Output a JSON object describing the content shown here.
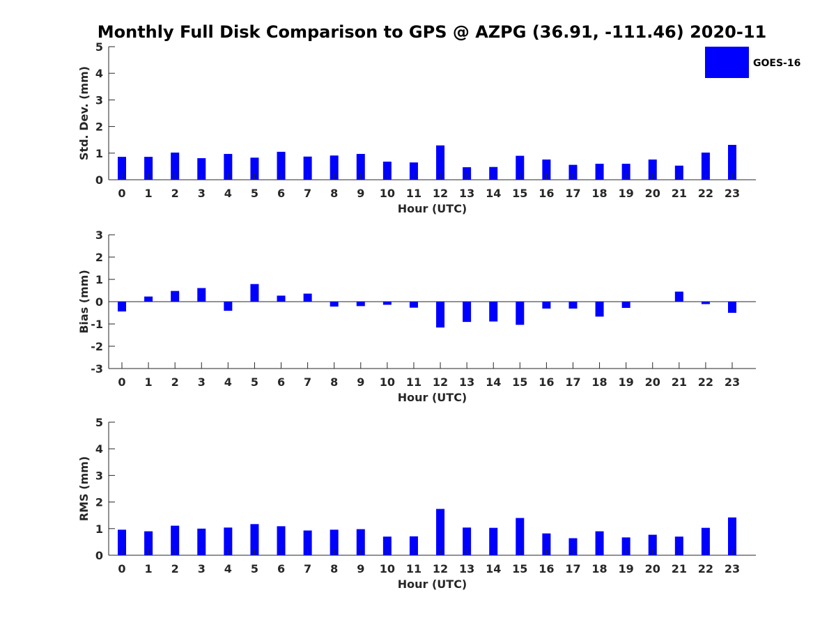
{
  "title": "Monthly Full Disk Comparison to GPS @ AZPG (36.91, -111.46) 2020-11",
  "legend": {
    "label": "GOES-16",
    "color": "#0000ff",
    "placement": "top-right"
  },
  "chart_data": [
    {
      "type": "bar",
      "xlabel": "Hour (UTC)",
      "ylabel": "Std. Dev. (mm)",
      "ylim": [
        0,
        5
      ],
      "yticks": [
        "0",
        "1",
        "2",
        "3",
        "4",
        "5"
      ],
      "categories": [
        "0",
        "1",
        "2",
        "3",
        "4",
        "5",
        "6",
        "7",
        "8",
        "9",
        "10",
        "11",
        "12",
        "13",
        "14",
        "15",
        "16",
        "17",
        "18",
        "19",
        "20",
        "21",
        "22",
        "23"
      ],
      "series": [
        {
          "name": "GOES-16",
          "color": "#0000ff",
          "values": [
            0.86,
            0.86,
            1.02,
            0.81,
            0.97,
            0.83,
            1.05,
            0.87,
            0.91,
            0.97,
            0.68,
            0.65,
            1.29,
            0.47,
            0.48,
            0.9,
            0.76,
            0.56,
            0.6,
            0.6,
            0.76,
            0.53,
            1.02,
            1.31
          ]
        }
      ],
      "grid": false
    },
    {
      "type": "bar",
      "xlabel": "Hour (UTC)",
      "ylabel": "Bias (mm)",
      "ylim": [
        -3,
        3
      ],
      "yticks": [
        "-3",
        "-2",
        "-1",
        "0",
        "1",
        "2",
        "3"
      ],
      "categories": [
        "0",
        "1",
        "2",
        "3",
        "4",
        "5",
        "6",
        "7",
        "8",
        "9",
        "10",
        "11",
        "12",
        "13",
        "14",
        "15",
        "16",
        "17",
        "18",
        "19",
        "20",
        "21",
        "22",
        "23"
      ],
      "series": [
        {
          "name": "GOES-16",
          "color": "#0000ff",
          "values": [
            -0.44,
            0.23,
            0.48,
            0.61,
            -0.41,
            0.79,
            0.27,
            0.36,
            -0.22,
            -0.2,
            -0.14,
            -0.27,
            -1.16,
            -0.91,
            -0.89,
            -1.04,
            -0.31,
            -0.31,
            -0.67,
            -0.28,
            0.0,
            0.45,
            -0.11,
            -0.5
          ]
        }
      ],
      "grid": false
    },
    {
      "type": "bar",
      "xlabel": "Hour (UTC)",
      "ylabel": "RMS (mm)",
      "ylim": [
        0,
        5
      ],
      "yticks": [
        "0",
        "1",
        "2",
        "3",
        "4",
        "5"
      ],
      "categories": [
        "0",
        "1",
        "2",
        "3",
        "4",
        "5",
        "6",
        "7",
        "8",
        "9",
        "10",
        "11",
        "12",
        "13",
        "14",
        "15",
        "16",
        "17",
        "18",
        "19",
        "20",
        "21",
        "22",
        "23"
      ],
      "series": [
        {
          "name": "GOES-16",
          "color": "#0000ff",
          "values": [
            0.96,
            0.9,
            1.11,
            1.0,
            1.04,
            1.17,
            1.09,
            0.93,
            0.96,
            0.98,
            0.7,
            0.71,
            1.74,
            1.04,
            1.03,
            1.4,
            0.82,
            0.64,
            0.9,
            0.67,
            0.77,
            0.7,
            1.03,
            1.42
          ]
        }
      ],
      "grid": false
    }
  ]
}
